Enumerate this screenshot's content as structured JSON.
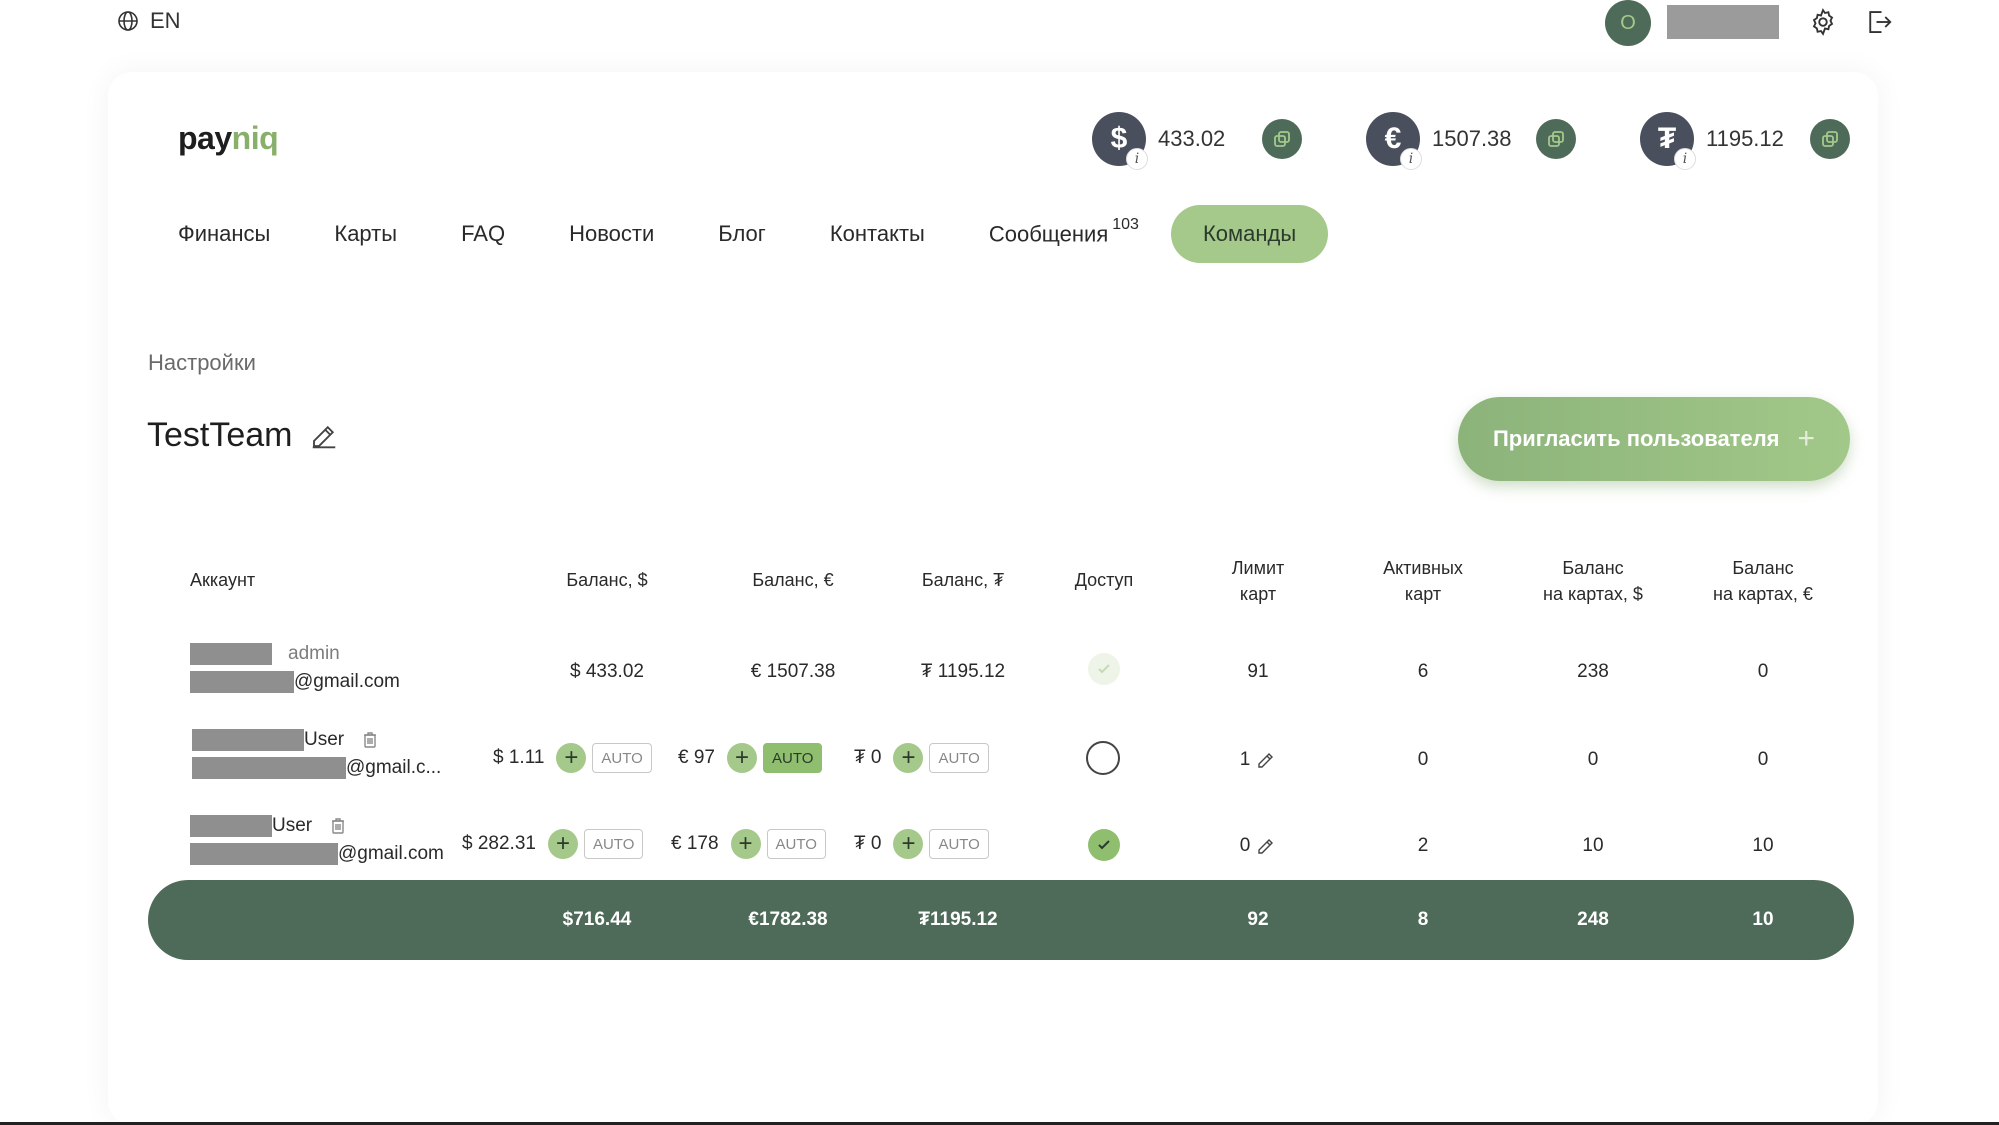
{
  "topbar": {
    "language": "EN",
    "avatar_initial": "O",
    "icons": {
      "language": "globe-icon",
      "settings": "gear-icon",
      "logout": "logout-icon"
    }
  },
  "brand": {
    "logo_pay": "pay",
    "logo_niq": "niq",
    "accent_color": "#88b06a",
    "dark_green": "#4e6a58"
  },
  "balances": [
    {
      "symbol": "$",
      "value": "433.02"
    },
    {
      "symbol": "€",
      "value": "1507.38"
    },
    {
      "symbol": "₮",
      "value": "1195.12"
    }
  ],
  "nav": {
    "items": [
      {
        "label": "Финансы"
      },
      {
        "label": "Карты"
      },
      {
        "label": "FAQ"
      },
      {
        "label": "Новости"
      },
      {
        "label": "Блог"
      },
      {
        "label": "Контакты"
      },
      {
        "label": "Сообщения",
        "badge": "103"
      },
      {
        "label": "Команды",
        "active": true
      }
    ]
  },
  "page": {
    "breadcrumb": "Настройки",
    "team_name": "TestTeam",
    "invite_label": "Пригласить пользователя"
  },
  "table": {
    "headers": {
      "account": "Аккаунт",
      "bal_usd": "Баланс, $",
      "bal_eur": "Баланс, €",
      "bal_usdt": "Баланс, ₮",
      "access": "Доступ",
      "limit_1": "Лимит",
      "limit_2": "карт",
      "active_1": "Активных",
      "active_2": "карт",
      "cards_usd_1": "Баланс",
      "cards_usd_2": "на картах, $",
      "cards_eur_1": "Баланс",
      "cards_eur_2": "на картах, €"
    },
    "rows": [
      {
        "role": "admin",
        "email": "@gmail.com",
        "bal_usd": "$ 433.02",
        "bal_eur": "€ 1507.38",
        "bal_usdt": "₮ 1195.12",
        "access": "faint",
        "limit": "91",
        "active": "6",
        "cards_usd": "238",
        "cards_eur": "0"
      },
      {
        "role": "User",
        "email": "@gmail.c...",
        "bal_usd": "$ 1.11",
        "bal_eur": "€ 97",
        "bal_usdt": "₮ 0",
        "auto_usd": "AUTO",
        "auto_eur": "AUTO",
        "auto_usdt": "AUTO",
        "auto_eur_on": true,
        "access": "empty",
        "limit": "1",
        "active": "0",
        "cards_usd": "0",
        "cards_eur": "0"
      },
      {
        "role": "User",
        "email": "@gmail.com",
        "bal_usd": "$ 282.31",
        "bal_eur": "€ 178",
        "bal_usdt": "₮ 0",
        "auto_usd": "AUTO",
        "auto_eur": "AUTO",
        "auto_usdt": "AUTO",
        "access": "on",
        "limit": "0",
        "active": "2",
        "cards_usd": "10",
        "cards_eur": "10"
      }
    ],
    "totals": {
      "bal_usd": "$716.44",
      "bal_eur": "€1782.38",
      "bal_usdt": "₮1195.12",
      "limit": "92",
      "active": "8",
      "cards_usd": "248",
      "cards_eur": "10"
    }
  }
}
